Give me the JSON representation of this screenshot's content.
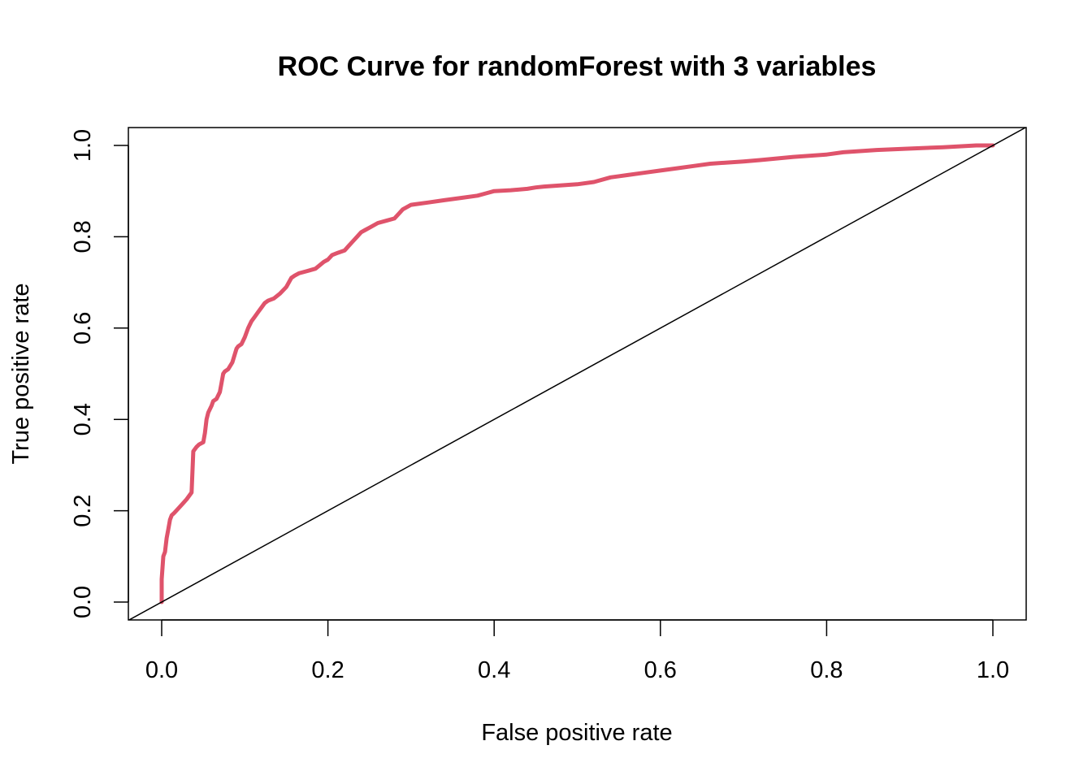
{
  "chart_data": {
    "type": "line",
    "title": "ROC Curve for randomForest with 3 variables",
    "xlabel": "False positive rate",
    "ylabel": "True positive rate",
    "xlim": [
      0,
      1
    ],
    "ylim": [
      0,
      1
    ],
    "xticks": [
      "0.0",
      "0.2",
      "0.4",
      "0.6",
      "0.8",
      "1.0"
    ],
    "yticks": [
      "0.0",
      "0.2",
      "0.4",
      "0.6",
      "0.8",
      "1.0"
    ],
    "grid": false,
    "legend": "none",
    "series": [
      {
        "color": "#DF536B",
        "x": [
          0.0,
          0.0,
          0.002,
          0.004,
          0.006,
          0.008,
          0.01,
          0.012,
          0.015,
          0.02,
          0.025,
          0.03,
          0.036,
          0.038,
          0.04,
          0.042,
          0.045,
          0.05,
          0.052,
          0.054,
          0.056,
          0.06,
          0.062,
          0.066,
          0.07,
          0.072,
          0.074,
          0.076,
          0.08,
          0.085,
          0.09,
          0.092,
          0.096,
          0.1,
          0.104,
          0.108,
          0.112,
          0.116,
          0.12,
          0.124,
          0.128,
          0.135,
          0.142,
          0.15,
          0.156,
          0.16,
          0.165,
          0.175,
          0.185,
          0.195,
          0.2,
          0.205,
          0.212,
          0.22,
          0.225,
          0.23,
          0.235,
          0.24,
          0.245,
          0.25,
          0.26,
          0.27,
          0.28,
          0.285,
          0.29,
          0.3,
          0.32,
          0.34,
          0.36,
          0.38,
          0.39,
          0.4,
          0.42,
          0.44,
          0.45,
          0.46,
          0.5,
          0.52,
          0.54,
          0.56,
          0.58,
          0.6,
          0.62,
          0.64,
          0.66,
          0.7,
          0.72,
          0.76,
          0.8,
          0.82,
          0.86,
          0.9,
          0.94,
          0.96,
          0.98,
          1.0
        ],
        "y": [
          0.0,
          0.05,
          0.1,
          0.11,
          0.14,
          0.16,
          0.18,
          0.19,
          0.195,
          0.205,
          0.215,
          0.225,
          0.24,
          0.33,
          0.335,
          0.34,
          0.345,
          0.35,
          0.37,
          0.4,
          0.415,
          0.43,
          0.44,
          0.445,
          0.46,
          0.48,
          0.5,
          0.505,
          0.51,
          0.525,
          0.555,
          0.56,
          0.565,
          0.58,
          0.6,
          0.615,
          0.625,
          0.635,
          0.645,
          0.655,
          0.66,
          0.665,
          0.675,
          0.69,
          0.71,
          0.715,
          0.72,
          0.725,
          0.73,
          0.745,
          0.75,
          0.76,
          0.765,
          0.77,
          0.78,
          0.79,
          0.8,
          0.81,
          0.815,
          0.82,
          0.83,
          0.835,
          0.84,
          0.85,
          0.86,
          0.87,
          0.875,
          0.88,
          0.885,
          0.89,
          0.895,
          0.9,
          0.902,
          0.905,
          0.908,
          0.91,
          0.915,
          0.92,
          0.93,
          0.935,
          0.94,
          0.945,
          0.95,
          0.955,
          0.96,
          0.965,
          0.968,
          0.975,
          0.98,
          0.985,
          0.99,
          0.993,
          0.996,
          0.998,
          1.0,
          1.0
        ]
      },
      {
        "color": "#000000",
        "x": [
          0,
          1
        ],
        "y": [
          0,
          1
        ]
      }
    ]
  }
}
